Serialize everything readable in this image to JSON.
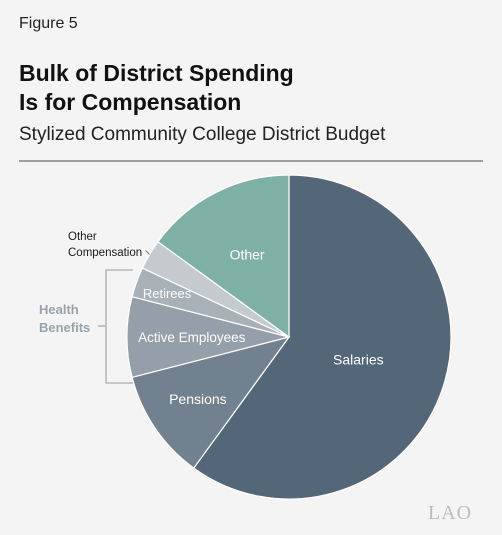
{
  "header": {
    "figure_label": "Figure 5",
    "title_line1": "Bulk of District Spending",
    "title_line2": "Is for Compensation",
    "subtitle": "Stylized Community College District Budget"
  },
  "chart_data": {
    "type": "pie",
    "title": "Bulk of District Spending Is for Compensation",
    "subtitle": "Stylized Community College District Budget",
    "slices": [
      {
        "label": "Salaries",
        "value": 60,
        "color": "#536778"
      },
      {
        "label": "Pensions",
        "value": 11,
        "color": "#72818f"
      },
      {
        "label": "Active Employees",
        "value": 8,
        "color": "#959fa9"
      },
      {
        "label": "Retirees",
        "value": 3,
        "color": "#a8b0b8"
      },
      {
        "label": "Other Compensation",
        "value": 3,
        "color": "#c5cacf"
      },
      {
        "label": "Other",
        "value": 15,
        "color": "#7fb0a5"
      }
    ],
    "group_annotation": {
      "label_line1": "Health",
      "label_line2": "Benefits",
      "members": [
        "Active Employees",
        "Retirees"
      ],
      "color": "#9aa3ab"
    },
    "outside_label": {
      "line1": "Other",
      "line2": "Compensation"
    }
  },
  "footer": {
    "logo": "LAO"
  }
}
